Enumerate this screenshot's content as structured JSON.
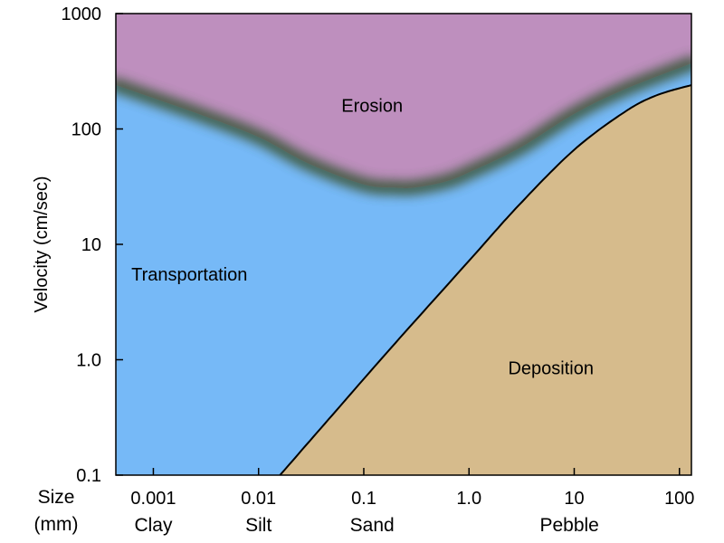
{
  "chart_data": {
    "type": "area",
    "title": "",
    "ylabel": "Velocity (cm/sec)",
    "xscale": "log",
    "yscale": "log",
    "xlim": [
      0.00044,
      130
    ],
    "ylim": [
      0.1,
      1000
    ],
    "y_ticks": [
      {
        "value": 1000,
        "label": "1000"
      },
      {
        "value": 100,
        "label": "100"
      },
      {
        "value": 10,
        "label": "10"
      },
      {
        "value": 1,
        "label": "1.0"
      },
      {
        "value": 0.1,
        "label": "0.1"
      }
    ],
    "x_ticks": [
      {
        "value": 0.001,
        "label": "0.001"
      },
      {
        "value": 0.01,
        "label": "0.01"
      },
      {
        "value": 0.1,
        "label": "0.1"
      },
      {
        "value": 1,
        "label": "1.0"
      },
      {
        "value": 10,
        "label": "10"
      },
      {
        "value": 100,
        "label": "100"
      }
    ],
    "x_axis_row_label": "Size",
    "x_axis_unit_label": "(mm)",
    "size_classes": [
      {
        "value": 0.001,
        "label": "Clay"
      },
      {
        "value": 0.01,
        "label": "Silt"
      },
      {
        "value": 0.12,
        "label": "Sand"
      },
      {
        "value": 9,
        "label": "Pebble"
      }
    ],
    "regions": [
      {
        "name": "Erosion",
        "label": "Erosion",
        "label_at": [
          0.12,
          160
        ],
        "color": "#be8fbe"
      },
      {
        "name": "Transportation",
        "label": "Transportation",
        "label_at": [
          0.0022,
          5.5
        ],
        "color": "#76b9f7"
      },
      {
        "name": "Deposition",
        "label": "Deposition",
        "label_at": [
          6,
          0.85
        ],
        "color": "#d6bb8c"
      }
    ],
    "erosion_curve": {
      "description_free": true,
      "x": [
        0.00044,
        0.001,
        0.003,
        0.01,
        0.03,
        0.1,
        0.2,
        0.3,
        0.6,
        1,
        3,
        10,
        30,
        130
      ],
      "y": [
        240,
        185,
        130,
        85,
        50,
        33,
        31,
        31,
        35,
        42,
        68,
        135,
        220,
        370
      ],
      "color": "#3f5a3f"
    },
    "settling_curve": {
      "x": [
        0.016,
        0.05,
        0.2,
        1,
        3,
        10,
        30,
        60,
        130
      ],
      "y": [
        0.1,
        0.33,
        1.4,
        7.2,
        22,
        66,
        140,
        195,
        240
      ],
      "color": "#000000"
    },
    "grid": false,
    "legend": "none"
  }
}
